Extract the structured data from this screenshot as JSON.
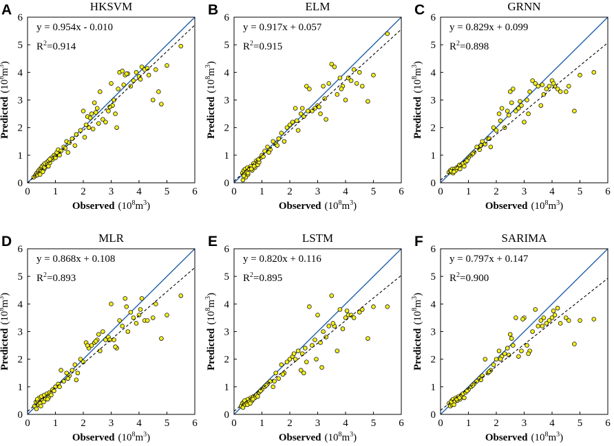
{
  "figure": {
    "type": "scatter-grid",
    "layout": "2x3"
  },
  "chart_data": [
    {
      "type": "scatter",
      "panel_label": "A",
      "title": "HKSVM",
      "xlabel": "Observed",
      "xunit_pre": "(10",
      "xunit_sup": "8",
      "xunit_post": "m",
      "xunit_sup2": "3",
      "xunit_end": ")",
      "ylabel": "Predicted",
      "yunit_pre": "(10",
      "yunit_sup": "8",
      "yunit_post": "m",
      "yunit_sup2": "3",
      "yunit_end": ")",
      "xlim": [
        0,
        6
      ],
      "ylim": [
        0,
        6
      ],
      "xticks": [
        "0",
        "1",
        "2",
        "3",
        "4",
        "5",
        "6"
      ],
      "yticks": [
        "0",
        "1",
        "2",
        "3",
        "4",
        "5",
        "6"
      ],
      "equation": "y = 0.954x - 0.010",
      "r2_prefix": "R",
      "r2_sup": "2",
      "r2_value": "=0.914",
      "fit": {
        "slope": 0.954,
        "intercept": -0.01
      },
      "identity_line": true,
      "points": {
        "x": [
          0.22,
          0.28,
          0.3,
          0.33,
          0.35,
          0.38,
          0.4,
          0.42,
          0.45,
          0.48,
          0.5,
          0.52,
          0.55,
          0.58,
          0.6,
          0.62,
          0.65,
          0.7,
          0.72,
          0.75,
          0.8,
          0.85,
          0.9,
          0.95,
          1.0,
          1.05,
          1.1,
          1.2,
          1.3,
          1.4,
          1.5,
          1.6,
          1.75,
          1.9,
          2.0,
          2.1,
          2.15,
          2.2,
          2.3,
          2.35,
          2.4,
          2.5,
          2.6,
          2.7,
          2.8,
          2.9,
          3.0,
          3.05,
          3.1,
          3.2,
          3.25,
          3.3,
          3.4,
          3.5,
          3.6,
          3.7,
          3.8,
          3.9,
          4.0,
          4.1,
          4.2,
          4.3,
          4.5,
          4.6,
          4.7,
          4.8,
          5.0,
          5.5,
          0.45,
          0.55,
          0.6,
          0.75,
          0.8,
          1.0,
          1.15,
          1.35,
          1.45,
          1.7,
          2.05,
          2.25,
          2.45,
          2.55,
          2.95,
          3.15,
          3.45,
          3.55,
          4.05,
          4.35
        ],
        "y": [
          0.2,
          0.25,
          0.3,
          0.35,
          0.28,
          0.4,
          0.45,
          0.35,
          0.5,
          0.42,
          0.55,
          0.6,
          0.48,
          0.65,
          0.5,
          0.7,
          0.58,
          0.75,
          0.65,
          0.8,
          0.72,
          0.9,
          0.85,
          1.0,
          0.95,
          1.1,
          1.2,
          1.15,
          1.3,
          1.5,
          1.45,
          1.6,
          1.75,
          1.9,
          2.6,
          2.1,
          2.4,
          2.0,
          2.5,
          1.95,
          2.9,
          2.7,
          3.3,
          2.3,
          2.2,
          2.6,
          3.6,
          2.8,
          3.0,
          2.0,
          3.4,
          4.0,
          4.05,
          3.9,
          3.95,
          3.5,
          3.7,
          4.0,
          3.85,
          4.2,
          4.1,
          4.15,
          3.0,
          4.1,
          3.3,
          2.85,
          4.25,
          4.95,
          0.3,
          0.4,
          0.55,
          0.6,
          0.85,
          0.9,
          1.0,
          1.25,
          1.1,
          1.35,
          1.65,
          2.35,
          2.55,
          2.15,
          2.75,
          2.5,
          3.55,
          3.95,
          3.75,
          3.9
        ]
      }
    },
    {
      "type": "scatter",
      "panel_label": "B",
      "title": "ELM",
      "xlabel": "Observed",
      "xunit_pre": "(10",
      "xunit_sup": "8",
      "xunit_post": "m",
      "xunit_sup2": "3",
      "xunit_end": ")",
      "ylabel": "Predicted",
      "yunit_pre": "(10",
      "yunit_sup": "8",
      "yunit_post": "m",
      "yunit_sup2": "3",
      "yunit_end": ")",
      "xlim": [
        0,
        6
      ],
      "ylim": [
        0,
        6
      ],
      "xticks": [
        "0",
        "1",
        "2",
        "3",
        "4",
        "5",
        "6"
      ],
      "yticks": [
        "0",
        "1",
        "2",
        "3",
        "4",
        "5",
        "6"
      ],
      "equation": "y = 0.917x + 0.057",
      "r2_prefix": "R",
      "r2_sup": "2",
      "r2_value": "=0.915",
      "fit": {
        "slope": 0.917,
        "intercept": 0.057
      },
      "identity_line": true,
      "points": {
        "x": [
          0.3,
          0.32,
          0.35,
          0.38,
          0.4,
          0.42,
          0.45,
          0.48,
          0.5,
          0.55,
          0.6,
          0.65,
          0.7,
          0.75,
          0.8,
          0.85,
          0.9,
          0.95,
          1.0,
          1.1,
          1.2,
          1.3,
          1.4,
          1.5,
          1.6,
          1.7,
          1.8,
          1.9,
          2.0,
          2.1,
          2.2,
          2.3,
          2.4,
          2.5,
          2.6,
          2.7,
          2.8,
          2.9,
          3.0,
          3.1,
          3.2,
          3.3,
          3.4,
          3.5,
          3.6,
          3.7,
          3.8,
          3.9,
          4.0,
          4.1,
          4.2,
          4.3,
          4.5,
          4.6,
          4.8,
          5.0,
          5.5,
          0.35,
          0.5,
          0.62,
          0.72,
          0.88,
          1.05,
          1.25,
          1.55,
          2.25,
          2.45,
          2.65,
          3.05,
          3.25,
          3.85,
          4.4
        ],
        "y": [
          0.35,
          0.1,
          0.45,
          0.3,
          0.5,
          0.2,
          0.4,
          0.55,
          0.3,
          0.5,
          0.6,
          0.45,
          0.7,
          0.55,
          0.8,
          0.65,
          0.75,
          0.9,
          1.0,
          1.15,
          1.3,
          1.2,
          1.5,
          1.4,
          1.6,
          1.8,
          1.5,
          2.0,
          2.1,
          2.2,
          2.7,
          1.9,
          2.5,
          2.4,
          3.5,
          3.4,
          2.6,
          2.7,
          2.8,
          2.5,
          3.5,
          2.3,
          3.6,
          4.3,
          4.2,
          3.2,
          3.8,
          3.5,
          3.0,
          3.8,
          3.7,
          4.1,
          4.0,
          3.5,
          2.95,
          3.9,
          5.4,
          0.25,
          0.35,
          0.5,
          0.6,
          0.85,
          0.95,
          1.1,
          1.35,
          2.25,
          2.7,
          2.6,
          2.75,
          3.05,
          3.4,
          3.6
        ]
      }
    },
    {
      "type": "scatter",
      "panel_label": "C",
      "title": "GRNN",
      "xlabel": "Observed",
      "xunit_pre": "(10",
      "xunit_sup": "8",
      "xunit_post": "m",
      "xunit_sup2": "3",
      "xunit_end": ")",
      "ylabel": "Predicted",
      "yunit_pre": "(10",
      "yunit_sup": "8",
      "yunit_post": "m",
      "yunit_sup2": "3",
      "yunit_end": ")",
      "xlim": [
        0,
        6
      ],
      "ylim": [
        0,
        6
      ],
      "xticks": [
        "0",
        "1",
        "2",
        "3",
        "4",
        "5",
        "6"
      ],
      "yticks": [
        "0",
        "1",
        "2",
        "3",
        "4",
        "5",
        "6"
      ],
      "equation": "y = 0.829x + 0.099",
      "r2_prefix": "R",
      "r2_sup": "2",
      "r2_value": "=0.898",
      "fit": {
        "slope": 0.829,
        "intercept": 0.099
      },
      "identity_line": true,
      "points": {
        "x": [
          0.3,
          0.35,
          0.4,
          0.42,
          0.45,
          0.5,
          0.55,
          0.6,
          0.65,
          0.7,
          0.75,
          0.8,
          0.85,
          0.9,
          1.0,
          1.1,
          1.2,
          1.3,
          1.4,
          1.5,
          1.6,
          1.7,
          1.8,
          1.9,
          2.0,
          2.1,
          2.2,
          2.3,
          2.4,
          2.5,
          2.6,
          2.7,
          2.8,
          2.9,
          3.0,
          3.1,
          3.2,
          3.3,
          3.4,
          3.5,
          3.6,
          3.7,
          3.8,
          3.9,
          4.0,
          4.1,
          4.2,
          4.3,
          4.5,
          4.6,
          4.8,
          5.0,
          5.5,
          0.38,
          0.48,
          0.58,
          0.68,
          0.95,
          1.15,
          1.45,
          1.75,
          2.15,
          2.45,
          2.55,
          2.85,
          3.15,
          3.65,
          4.05
        ],
        "y": [
          0.38,
          0.45,
          0.4,
          0.5,
          0.35,
          0.5,
          0.45,
          0.55,
          0.6,
          0.5,
          0.65,
          0.7,
          0.6,
          0.75,
          0.9,
          1.0,
          1.1,
          1.3,
          1.2,
          1.5,
          1.4,
          1.6,
          1.3,
          2.0,
          1.9,
          2.5,
          2.7,
          2.0,
          2.6,
          3.3,
          3.4,
          2.6,
          2.7,
          2.8,
          2.2,
          3.0,
          3.3,
          3.7,
          3.6,
          3.5,
          2.8,
          3.2,
          3.4,
          3.5,
          3.7,
          3.5,
          3.4,
          3.3,
          3.3,
          3.5,
          2.6,
          3.9,
          4.0,
          0.42,
          0.4,
          0.55,
          0.65,
          0.8,
          1.05,
          1.35,
          1.6,
          2.25,
          2.45,
          2.9,
          2.95,
          2.5,
          3.55,
          3.6
        ]
      }
    },
    {
      "type": "scatter",
      "panel_label": "D",
      "title": "MLR",
      "xlabel": "Observed",
      "xunit_pre": "(10",
      "xunit_sup": "8",
      "xunit_post": "m",
      "xunit_sup2": "3",
      "xunit_end": ")",
      "ylabel": "Predicted",
      "yunit_pre": "(10",
      "yunit_sup": "8",
      "yunit_post": "m",
      "yunit_sup2": "3",
      "yunit_end": ")",
      "xlim": [
        0,
        6
      ],
      "ylim": [
        0,
        6
      ],
      "xticks": [
        "0",
        "1",
        "2",
        "3",
        "4",
        "5",
        "6"
      ],
      "yticks": [
        "0",
        "1",
        "2",
        "3",
        "4",
        "5",
        "6"
      ],
      "equation": "y = 0.868x + 0.108",
      "r2_prefix": "R",
      "r2_sup": "2",
      "r2_value": "=0.893",
      "fit": {
        "slope": 0.868,
        "intercept": 0.108
      },
      "identity_line": true,
      "points": {
        "x": [
          0.25,
          0.3,
          0.32,
          0.35,
          0.4,
          0.42,
          0.45,
          0.5,
          0.55,
          0.6,
          0.65,
          0.7,
          0.75,
          0.8,
          0.85,
          0.9,
          1.0,
          1.1,
          1.2,
          1.3,
          1.4,
          1.5,
          1.6,
          1.7,
          1.8,
          1.9,
          2.0,
          2.1,
          2.2,
          2.3,
          2.4,
          2.5,
          2.6,
          2.7,
          2.8,
          2.9,
          3.0,
          3.1,
          3.2,
          3.3,
          3.4,
          3.5,
          3.6,
          3.7,
          3.8,
          3.9,
          4.0,
          4.1,
          4.2,
          4.3,
          4.5,
          4.6,
          4.8,
          5.0,
          5.5,
          0.35,
          0.48,
          0.58,
          0.72,
          0.95,
          1.15,
          1.45,
          1.75,
          2.15,
          2.45,
          2.55,
          2.95,
          3.15,
          3.55,
          4.05
        ],
        "y": [
          0.3,
          0.45,
          0.2,
          0.5,
          0.35,
          0.6,
          0.4,
          0.65,
          0.5,
          0.7,
          0.55,
          0.75,
          0.6,
          0.8,
          0.7,
          0.9,
          1.0,
          1.1,
          1.6,
          1.2,
          1.5,
          1.4,
          1.6,
          1.8,
          1.5,
          2.0,
          1.9,
          2.6,
          2.4,
          2.5,
          2.6,
          2.7,
          2.3,
          3.0,
          2.7,
          2.8,
          4.0,
          2.7,
          2.4,
          3.4,
          3.2,
          4.2,
          3.0,
          3.7,
          3.5,
          3.3,
          3.6,
          4.2,
          3.4,
          3.4,
          3.5,
          4.0,
          2.75,
          3.6,
          4.3,
          0.55,
          0.3,
          0.45,
          0.55,
          0.85,
          1.0,
          1.3,
          1.25,
          2.5,
          2.65,
          2.9,
          2.7,
          2.45,
          3.9,
          3.8
        ]
      }
    },
    {
      "type": "scatter",
      "panel_label": "E",
      "title": "LSTM",
      "xlabel": "Observed",
      "xunit_pre": "(10",
      "xunit_sup": "8",
      "xunit_post": "m",
      "xunit_sup2": "3",
      "xunit_end": ")",
      "ylabel": "Predicted",
      "yunit_pre": "(10",
      "yunit_sup": "8",
      "yunit_post": "m",
      "yunit_sup2": "3",
      "yunit_end": ")",
      "xlim": [
        0,
        6
      ],
      "ylim": [
        0,
        6
      ],
      "xticks": [
        "0",
        "1",
        "2",
        "3",
        "4",
        "5",
        "6"
      ],
      "yticks": [
        "0",
        "1",
        "2",
        "3",
        "4",
        "5",
        "6"
      ],
      "equation": "y = 0.820x + 0.116",
      "r2_prefix": "R",
      "r2_sup": "2",
      "r2_value": "=0.895",
      "fit": {
        "slope": 0.82,
        "intercept": 0.116
      },
      "identity_line": true,
      "points": {
        "x": [
          0.25,
          0.3,
          0.32,
          0.35,
          0.4,
          0.42,
          0.45,
          0.5,
          0.55,
          0.6,
          0.65,
          0.7,
          0.75,
          0.8,
          0.85,
          0.9,
          1.0,
          1.1,
          1.2,
          1.3,
          1.4,
          1.5,
          1.6,
          1.7,
          1.8,
          1.9,
          2.0,
          2.1,
          2.2,
          2.3,
          2.4,
          2.5,
          2.6,
          2.7,
          2.8,
          2.9,
          3.0,
          3.1,
          3.2,
          3.3,
          3.4,
          3.5,
          3.6,
          3.7,
          3.8,
          3.9,
          4.0,
          4.1,
          4.2,
          4.3,
          4.5,
          4.6,
          4.8,
          5.0,
          5.5,
          0.38,
          0.48,
          0.58,
          0.68,
          0.95,
          1.15,
          1.45,
          1.75,
          2.15,
          2.45,
          2.55,
          2.95,
          3.15,
          3.55,
          4.05
        ],
        "y": [
          0.3,
          0.4,
          0.25,
          0.45,
          0.35,
          0.5,
          0.4,
          0.55,
          0.45,
          0.6,
          0.5,
          0.65,
          0.6,
          0.7,
          0.65,
          0.8,
          0.9,
          1.0,
          1.1,
          1.2,
          1.0,
          1.5,
          1.3,
          1.8,
          1.5,
          1.9,
          2.0,
          2.1,
          2.0,
          2.3,
          1.6,
          1.5,
          1.9,
          3.9,
          2.5,
          2.7,
          3.6,
          2.6,
          3.0,
          2.8,
          3.2,
          4.3,
          3.2,
          2.3,
          3.8,
          3.1,
          3.5,
          3.6,
          3.6,
          3.5,
          3.7,
          3.8,
          2.75,
          3.9,
          3.9,
          0.5,
          0.35,
          0.4,
          0.55,
          0.85,
          1.05,
          1.2,
          1.45,
          2.2,
          2.2,
          2.4,
          2.0,
          1.7,
          3.3,
          3.75
        ]
      }
    },
    {
      "type": "scatter",
      "panel_label": "F",
      "title": "SARIMA",
      "xlabel": "Observed",
      "xunit_pre": "(10",
      "xunit_sup": "8",
      "xunit_post": "m",
      "xunit_sup2": "3",
      "xunit_end": ")",
      "ylabel": "Predicted",
      "yunit_pre": "(10",
      "yunit_sup": "8",
      "yunit_post": "m",
      "yunit_sup2": "3",
      "yunit_end": ")",
      "xlim": [
        0,
        6
      ],
      "ylim": [
        0,
        6
      ],
      "xticks": [
        "0",
        "1",
        "2",
        "3",
        "4",
        "5",
        "6"
      ],
      "yticks": [
        "0",
        "1",
        "2",
        "3",
        "4",
        "5",
        "6"
      ],
      "equation": "y = 0.797x + 0.147",
      "r2_prefix": "R",
      "r2_sup": "2",
      "r2_value": "=0.900",
      "fit": {
        "slope": 0.797,
        "intercept": 0.147
      },
      "identity_line": true,
      "points": {
        "x": [
          0.3,
          0.35,
          0.4,
          0.42,
          0.45,
          0.5,
          0.55,
          0.6,
          0.65,
          0.7,
          0.75,
          0.8,
          0.85,
          0.9,
          1.0,
          1.1,
          1.2,
          1.3,
          1.4,
          1.5,
          1.6,
          1.7,
          1.8,
          1.9,
          2.0,
          2.1,
          2.2,
          2.3,
          2.4,
          2.5,
          2.6,
          2.7,
          2.8,
          2.9,
          3.0,
          3.1,
          3.2,
          3.3,
          3.4,
          3.5,
          3.6,
          3.7,
          3.8,
          3.9,
          4.0,
          4.1,
          4.2,
          4.3,
          4.5,
          4.6,
          4.8,
          5.0,
          5.5,
          0.38,
          0.48,
          0.58,
          0.68,
          0.95,
          1.15,
          1.45,
          1.75,
          2.15,
          2.45,
          2.55,
          2.95,
          3.15,
          3.65,
          4.05
        ],
        "y": [
          0.4,
          0.3,
          0.5,
          0.35,
          0.55,
          0.45,
          0.6,
          0.5,
          0.65,
          0.55,
          0.7,
          0.75,
          0.6,
          0.8,
          0.9,
          1.0,
          1.1,
          1.2,
          1.3,
          1.4,
          2.0,
          1.5,
          1.6,
          1.8,
          2.0,
          2.3,
          2.1,
          2.2,
          2.4,
          2.9,
          2.5,
          3.5,
          2.1,
          2.3,
          3.5,
          2.5,
          2.3,
          3.0,
          3.8,
          3.2,
          3.4,
          3.5,
          3.3,
          3.4,
          3.5,
          3.6,
          3.85,
          3.3,
          3.5,
          3.4,
          2.55,
          3.4,
          3.45,
          0.45,
          0.35,
          0.55,
          0.6,
          0.85,
          1.05,
          1.25,
          1.55,
          2.0,
          2.15,
          2.75,
          3.45,
          2.2,
          3.2,
          3.75
        ]
      }
    }
  ]
}
